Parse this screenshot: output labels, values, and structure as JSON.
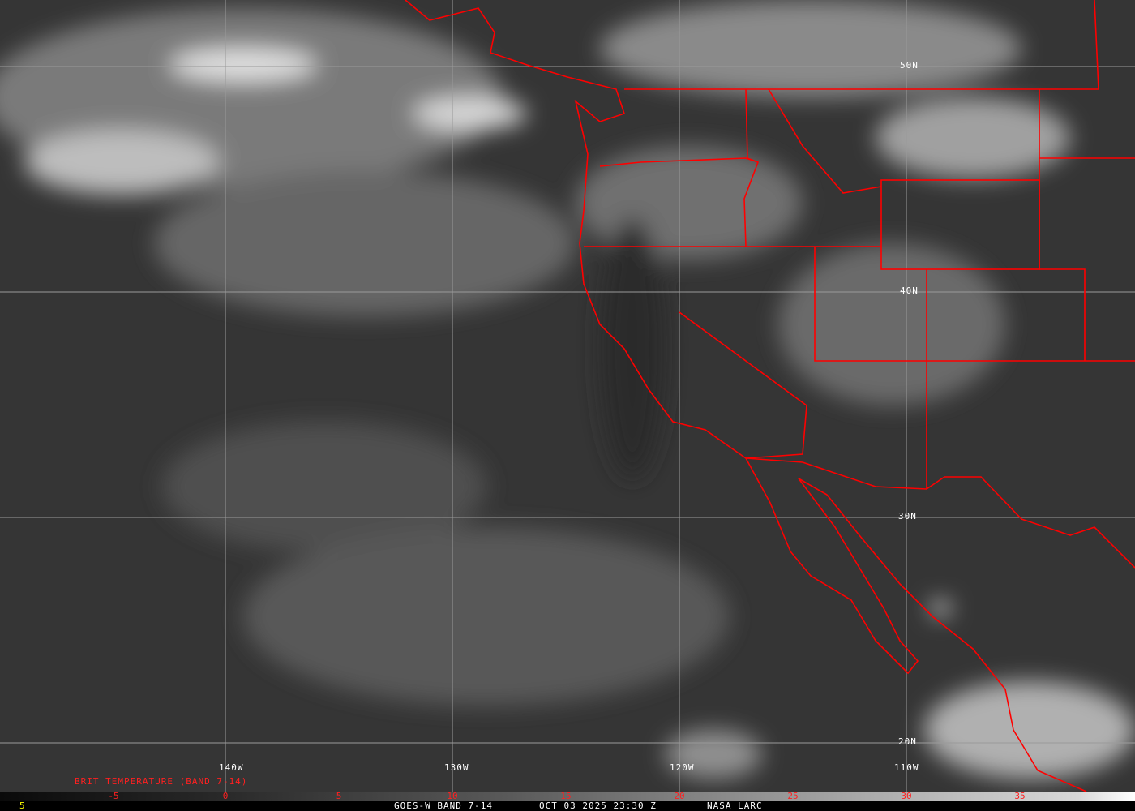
{
  "grid": {
    "longitudes": [
      "140W",
      "130W",
      "120W",
      "110W"
    ],
    "latitudes": [
      "50N",
      "40N",
      "30N",
      "20N"
    ]
  },
  "colorbar": {
    "title": "BRIT TEMPERATURE (BAND 7-14)",
    "ticks": [
      "-5",
      "0",
      "5",
      "10",
      "15",
      "20",
      "25",
      "30",
      "35"
    ]
  },
  "footer": {
    "frame": "5",
    "satellite": "GOES-W BAND 7-14",
    "datetime": "OCT 03 2025 23:30 Z",
    "source": "NASA LARC"
  },
  "colors": {
    "boundaries": "#ff0000",
    "labels": "#ffffff",
    "colorbar_text": "#ff2020",
    "frame_number": "#ffff00"
  }
}
